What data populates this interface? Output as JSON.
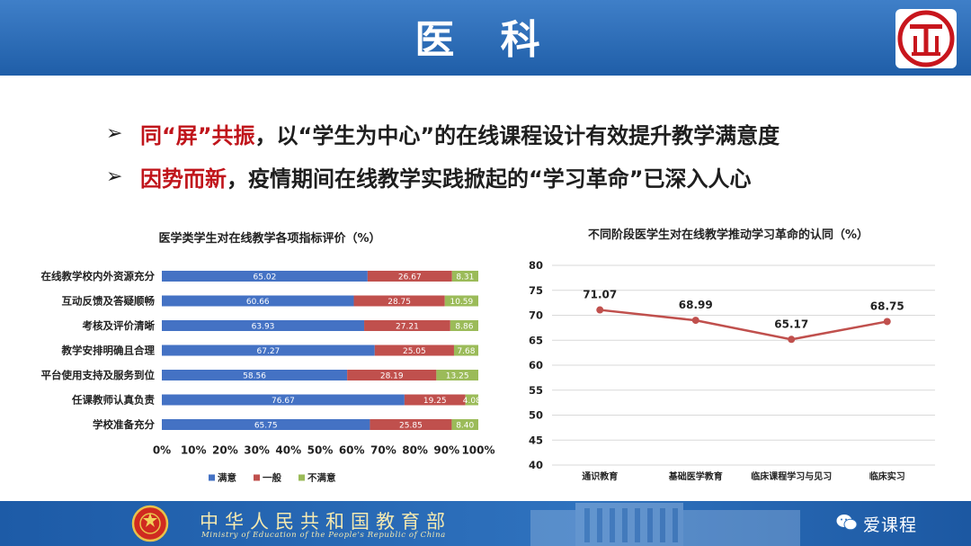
{
  "header": {
    "title": "医 科"
  },
  "bullets": [
    {
      "highlight": "同“屏”共振",
      "rest": "，以“学生为中心”的在线课程设计有效提升教学满意度"
    },
    {
      "highlight": "因势而新",
      "rest": "，疫情期间在线教学实践掀起的“学习革命”已深入人心"
    }
  ],
  "footer": {
    "org_cn": "中华人民共和国教育部",
    "org_en": "Ministry of Education of the People's Republic of China",
    "watermark": "爱课程"
  },
  "colors": {
    "header_blue": "#2e6db8",
    "satisfied": "#4472c4",
    "average": "#c0504d",
    "unsatisfied": "#9bbb59",
    "line": "#c0504d",
    "highlight_red": "#c0151b"
  },
  "chart_data": [
    {
      "type": "bar",
      "orientation": "horizontal",
      "stacked": "percent",
      "title": "医学类学生对在线教学各项指标评价（%）",
      "categories": [
        "在线教学校内外资源充分",
        "互动反馈及答疑顺畅",
        "考核及评价清晰",
        "教学安排明确且合理",
        "平台使用支持及服务到位",
        "任课教师认真负责",
        "学校准备充分"
      ],
      "series": [
        {
          "name": "满意",
          "values": [
            65.02,
            60.66,
            63.93,
            67.27,
            58.56,
            76.67,
            65.75
          ]
        },
        {
          "name": "一般",
          "values": [
            26.67,
            28.75,
            27.21,
            25.05,
            28.19,
            19.25,
            25.85
          ]
        },
        {
          "name": "不满意",
          "values": [
            8.31,
            10.59,
            8.86,
            7.68,
            13.25,
            4.08,
            8.4
          ]
        }
      ],
      "value_labels": [
        [
          "65.02",
          "60.66",
          "63.93",
          "67.27",
          "58.56",
          "76.67",
          "65.75"
        ],
        [
          "26.67",
          "28.75",
          "27.21",
          "25.05",
          "28.19",
          "19.25",
          "25.85"
        ],
        [
          "8.31",
          "10.59",
          "8.86",
          "7.68",
          "13.25",
          "4.08",
          "8.40"
        ]
      ],
      "x_ticks": [
        "0%",
        "10%",
        "20%",
        "30%",
        "40%",
        "50%",
        "60%",
        "70%",
        "80%",
        "90%",
        "100%"
      ],
      "xlim": [
        0,
        100
      ],
      "legend": "bottom"
    },
    {
      "type": "line",
      "title": "不同阶段医学生对在线教学推动学习革命的认同（%）",
      "categories": [
        "通识教育",
        "基础医学教育",
        "临床课程学习与见习",
        "临床实习"
      ],
      "values": [
        71.07,
        68.99,
        65.17,
        68.75
      ],
      "value_labels": [
        "71.07",
        "68.99",
        "65.17",
        "68.75"
      ],
      "ylim": [
        40,
        80
      ],
      "y_ticks": [
        "80",
        "75",
        "70",
        "65",
        "60",
        "55",
        "50",
        "45",
        "40"
      ],
      "grid": true
    }
  ]
}
